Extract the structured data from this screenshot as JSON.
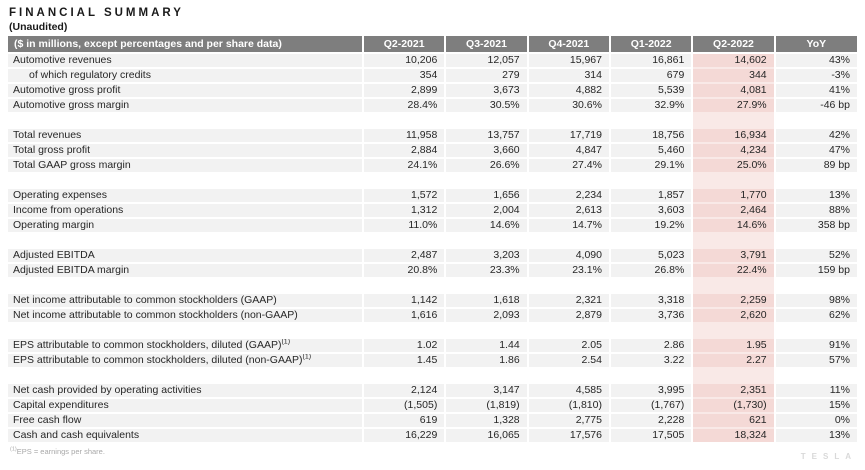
{
  "page": {
    "title": "FINANCIAL SUMMARY",
    "subtitle": "(Unaudited)"
  },
  "table": {
    "header_label": "($ in millions, except percentages and per share data)",
    "columns": [
      "Q2-2021",
      "Q3-2021",
      "Q4-2021",
      "Q1-2022",
      "Q2-2022",
      "YoY"
    ],
    "highlighted_column": "Q2-2022",
    "sections": [
      {
        "rows": [
          {
            "label": "Automotive revenues",
            "values": [
              "10,206",
              "12,057",
              "15,967",
              "16,861",
              "14,602",
              "43%"
            ]
          },
          {
            "label": "of which regulatory credits",
            "indent": true,
            "values": [
              "354",
              "279",
              "314",
              "679",
              "344",
              "-3%"
            ]
          },
          {
            "label": "Automotive gross profit",
            "values": [
              "2,899",
              "3,673",
              "4,882",
              "5,539",
              "4,081",
              "41%"
            ]
          },
          {
            "label": "Automotive gross margin",
            "values": [
              "28.4%",
              "30.5%",
              "30.6%",
              "32.9%",
              "27.9%",
              "-46 bp"
            ]
          }
        ]
      },
      {
        "rows": [
          {
            "label": "Total revenues",
            "values": [
              "11,958",
              "13,757",
              "17,719",
              "18,756",
              "16,934",
              "42%"
            ]
          },
          {
            "label": "Total gross profit",
            "values": [
              "2,884",
              "3,660",
              "4,847",
              "5,460",
              "4,234",
              "47%"
            ]
          },
          {
            "label": "Total GAAP gross margin",
            "values": [
              "24.1%",
              "26.6%",
              "27.4%",
              "29.1%",
              "25.0%",
              "89 bp"
            ]
          }
        ]
      },
      {
        "rows": [
          {
            "label": "Operating expenses",
            "values": [
              "1,572",
              "1,656",
              "2,234",
              "1,857",
              "1,770",
              "13%"
            ]
          },
          {
            "label": "Income from operations",
            "values": [
              "1,312",
              "2,004",
              "2,613",
              "3,603",
              "2,464",
              "88%"
            ]
          },
          {
            "label": "Operating margin",
            "values": [
              "11.0%",
              "14.6%",
              "14.7%",
              "19.2%",
              "14.6%",
              "358 bp"
            ]
          }
        ]
      },
      {
        "rows": [
          {
            "label": "Adjusted EBITDA",
            "values": [
              "2,487",
              "3,203",
              "4,090",
              "5,023",
              "3,791",
              "52%"
            ]
          },
          {
            "label": "Adjusted EBITDA margin",
            "values": [
              "20.8%",
              "23.3%",
              "23.1%",
              "26.8%",
              "22.4%",
              "159 bp"
            ]
          }
        ]
      },
      {
        "rows": [
          {
            "label": "Net income attributable to common stockholders (GAAP)",
            "values": [
              "1,142",
              "1,618",
              "2,321",
              "3,318",
              "2,259",
              "98%"
            ]
          },
          {
            "label": "Net income attributable to common stockholders (non-GAAP)",
            "values": [
              "1,616",
              "2,093",
              "2,879",
              "3,736",
              "2,620",
              "62%"
            ]
          }
        ]
      },
      {
        "rows": [
          {
            "label": "EPS attributable to common stockholders, diluted (GAAP)",
            "sup": "(1)",
            "values": [
              "1.02",
              "1.44",
              "2.05",
              "2.86",
              "1.95",
              "91%"
            ]
          },
          {
            "label": "EPS attributable to common stockholders, diluted (non-GAAP)",
            "sup": "(1)",
            "values": [
              "1.45",
              "1.86",
              "2.54",
              "3.22",
              "2.27",
              "57%"
            ]
          }
        ]
      },
      {
        "rows": [
          {
            "label": "Net cash provided by operating activities",
            "values": [
              "2,124",
              "3,147",
              "4,585",
              "3,995",
              "2,351",
              "11%"
            ]
          },
          {
            "label": "Capital expenditures",
            "values": [
              "(1,505)",
              "(1,819)",
              "(1,810)",
              "(1,767)",
              "(1,730)",
              "15%"
            ]
          },
          {
            "label": "Free cash flow",
            "values": [
              "619",
              "1,328",
              "2,775",
              "2,228",
              "621",
              "0%"
            ]
          },
          {
            "label": "Cash and cash equivalents",
            "values": [
              "16,229",
              "16,065",
              "17,576",
              "17,505",
              "18,324",
              "13%"
            ]
          }
        ]
      }
    ]
  },
  "footnote": {
    "sup": "(1)",
    "text": "EPS = earnings per share."
  },
  "watermark": "TESLA",
  "colors": {
    "header_bg": "#7e7e7e",
    "header_text": "#ffffff",
    "row_bg": "#f2f2f2",
    "highlight_bg": "#f4d9d6",
    "highlight_spacer_bg": "#f9e9e7",
    "body_text": "#262626"
  }
}
